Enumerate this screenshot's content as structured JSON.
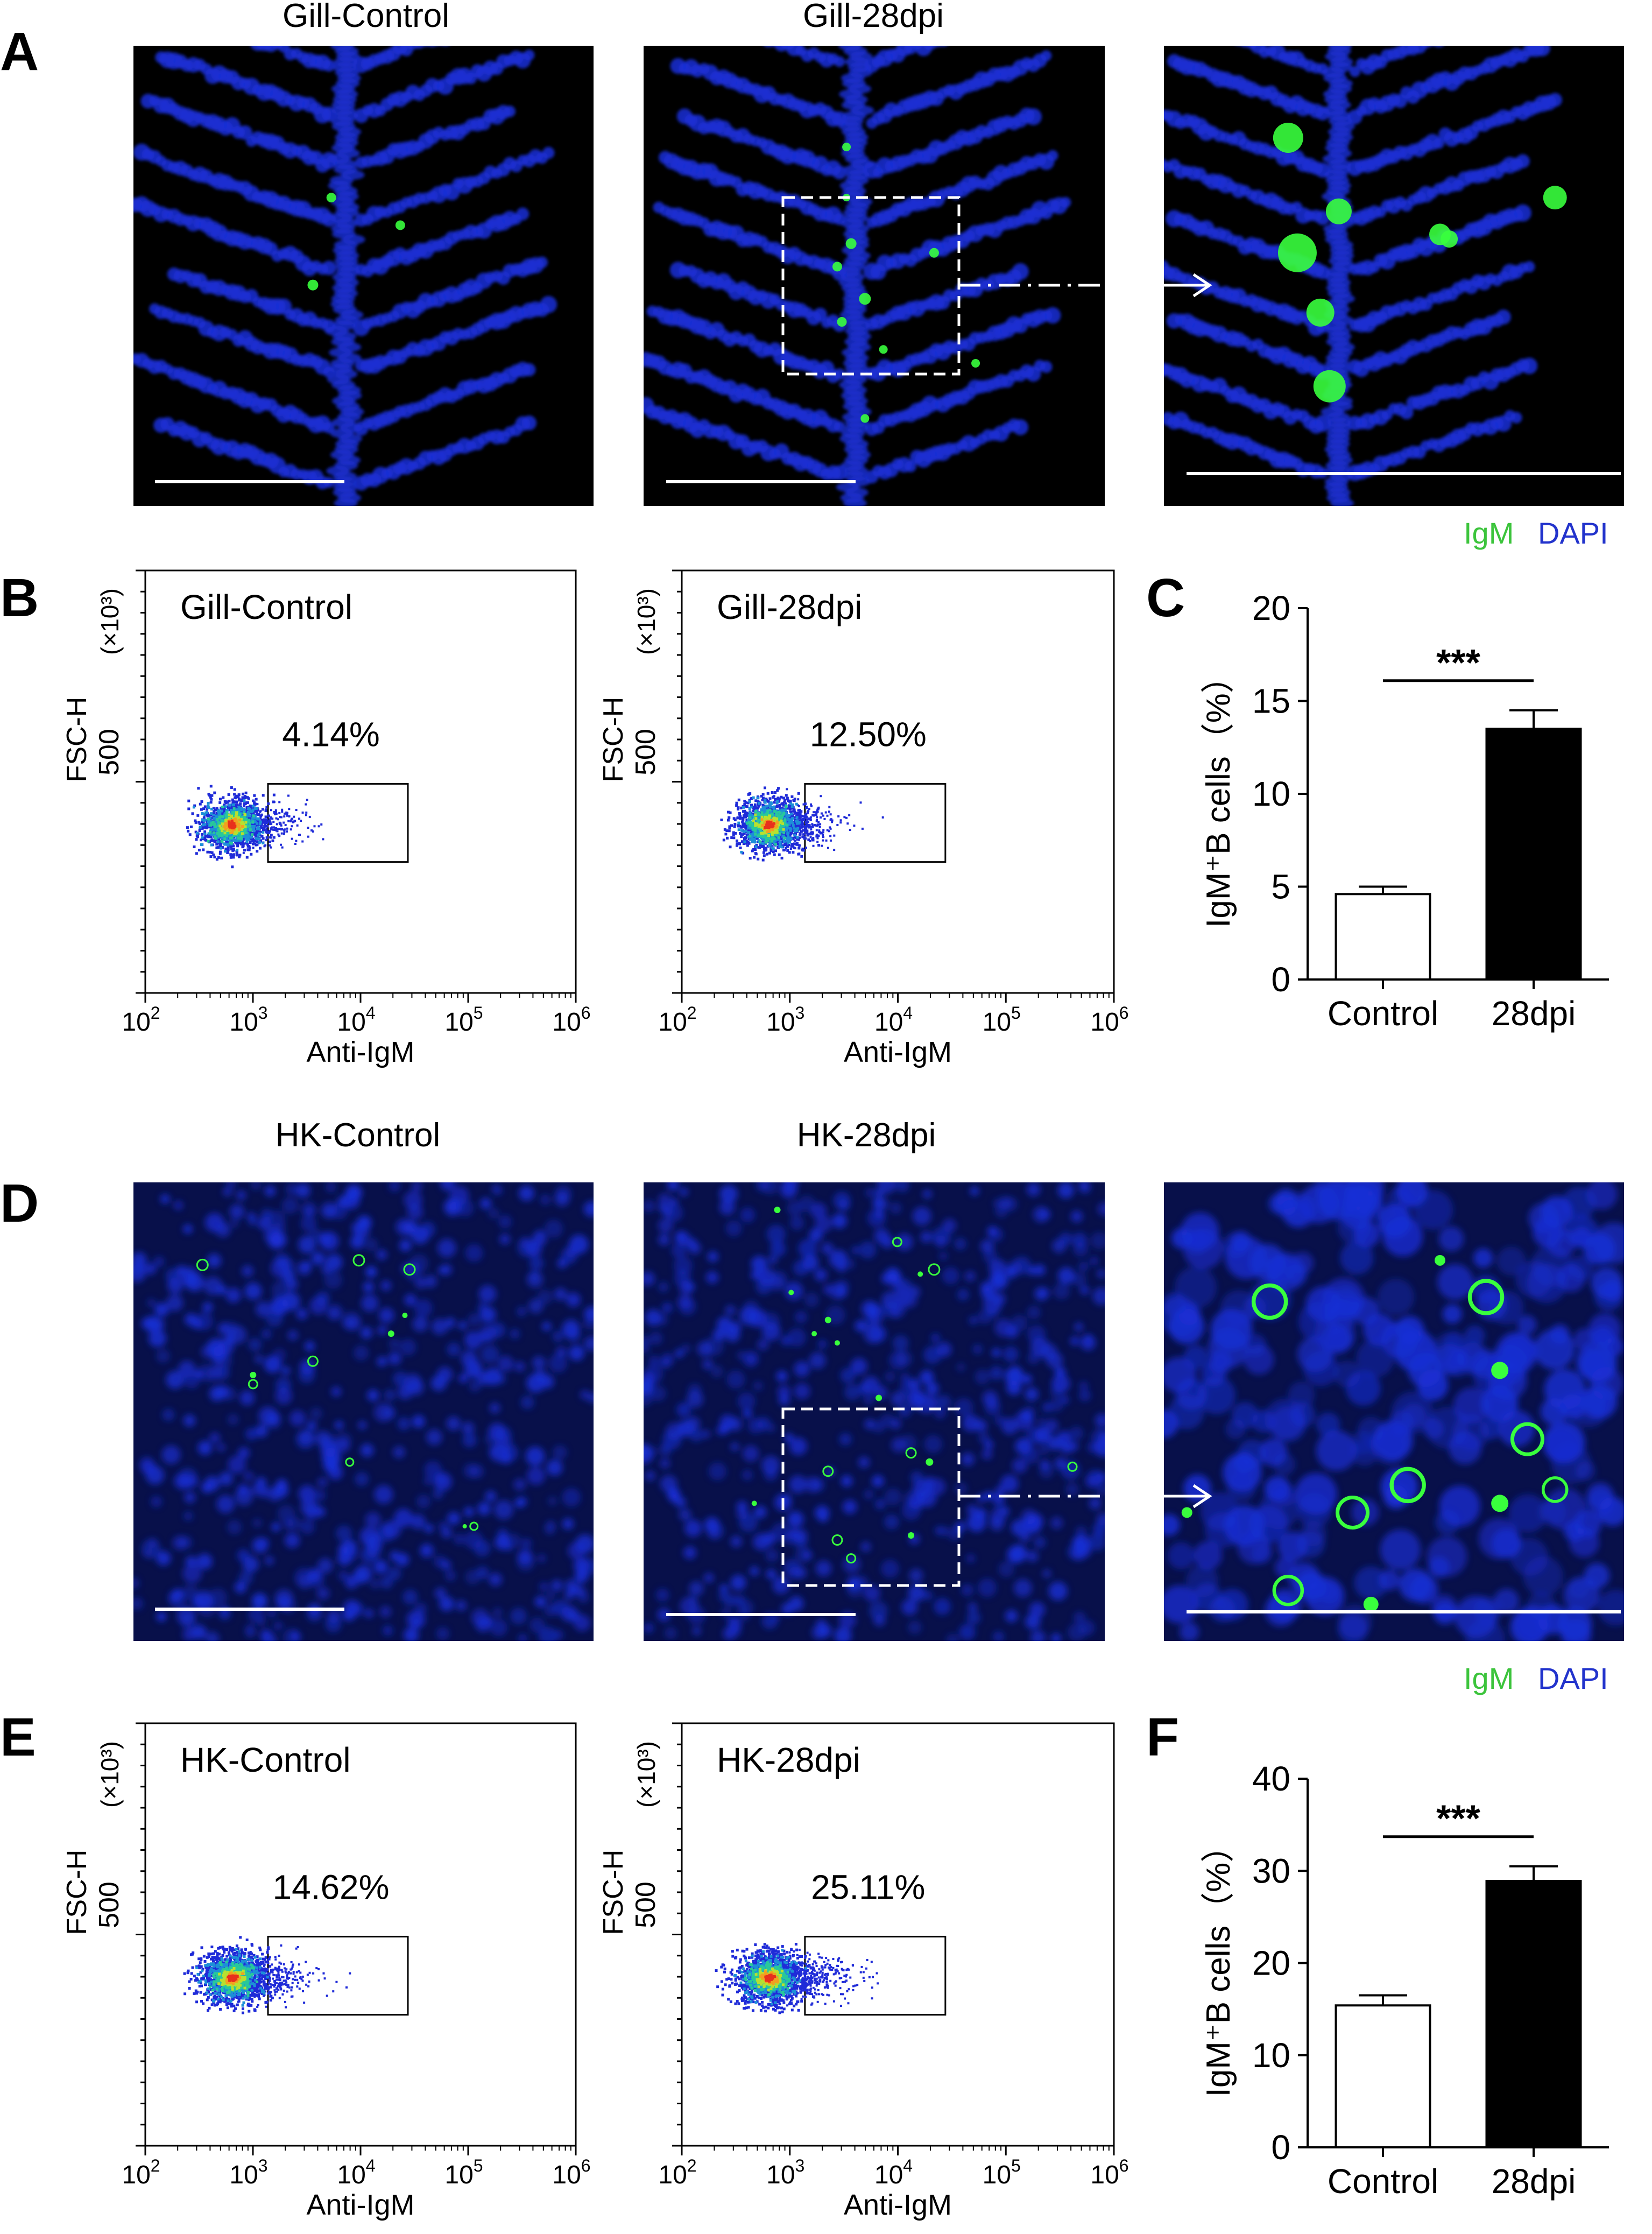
{
  "panel_letters": [
    "A",
    "B",
    "C",
    "D",
    "E",
    "F"
  ],
  "micro_titles": {
    "gill_control": "Gill-Control",
    "gill_28dpi": "Gill-28dpi",
    "hk_control": "HK-Control",
    "hk_28dpi": "HK-28dpi"
  },
  "stain_legend": {
    "igm": "IgM",
    "dapi": "DAPI"
  },
  "colors": {
    "dapi_blue": "#1a2fd6",
    "igm_green": "#39ff3d",
    "background_black": "#000000",
    "bar_28dpi": "#000000",
    "bar_control": "#ffffff",
    "legend_igm": "#3cc43c",
    "legend_dapi": "#2233cc"
  },
  "flow": {
    "ylabel": "FSC-H",
    "yunit": "(×10³)",
    "ytick": "500",
    "xlabel": "Anti-IgM",
    "xticks_base": [
      "10",
      "10",
      "10",
      "10",
      "10"
    ],
    "xticks_exp": [
      "2",
      "3",
      "4",
      "5",
      "6"
    ],
    "plots": [
      {
        "label": "Gill-Control",
        "percent": "4.14%",
        "density": 0.5
      },
      {
        "label": "Gill-28dpi",
        "percent": "12.50%",
        "density": 0.65
      },
      {
        "label": "HK-Control",
        "percent": "14.62%",
        "density": 0.8
      },
      {
        "label": "HK-28dpi",
        "percent": "25.11%",
        "density": 1.0
      }
    ]
  },
  "chart_data": [
    {
      "type": "bar",
      "panel": "C",
      "categories": [
        "Control",
        "28dpi"
      ],
      "values": [
        4.6,
        13.5
      ],
      "errors": [
        0.4,
        1.0
      ],
      "ylabel": "IgM⁺B cells（%）",
      "ylim": [
        0,
        20
      ],
      "yticks": [
        "0",
        "5",
        "10",
        "15",
        "20"
      ],
      "significance": "***"
    },
    {
      "type": "bar",
      "panel": "F",
      "categories": [
        "Control",
        "28dpi"
      ],
      "values": [
        15.4,
        28.9
      ],
      "errors": [
        1.1,
        1.6
      ],
      "ylabel": "IgM⁺B cells（%）",
      "ylim": [
        0,
        40
      ],
      "yticks": [
        "0",
        "10",
        "20",
        "30",
        "40"
      ],
      "significance": "***"
    }
  ]
}
